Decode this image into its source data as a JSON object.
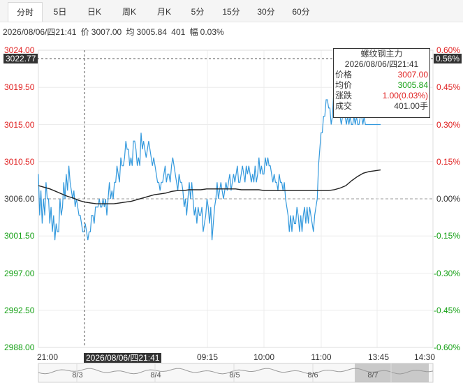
{
  "tabs": [
    {
      "label": "分时",
      "active": true
    },
    {
      "label": "5日",
      "active": false
    },
    {
      "label": "日K",
      "active": false
    },
    {
      "label": "周K",
      "active": false
    },
    {
      "label": "月K",
      "active": false
    },
    {
      "label": "5分",
      "active": false
    },
    {
      "label": "15分",
      "active": false
    },
    {
      "label": "30分",
      "active": false
    },
    {
      "label": "60分",
      "active": false
    }
  ],
  "info": {
    "time": "2026/08/06/四21:41",
    "price_label": "价",
    "price": "3007.00",
    "avg_label": "均",
    "avg": "3005.84",
    "volume": "401",
    "change_label": "幅",
    "change": "0.03%"
  },
  "tooltip": {
    "title": "螺纹钢主力",
    "time": "2026/08/06/四21:41",
    "rows": [
      {
        "label": "价格",
        "value": "3007.00",
        "color": "#e02020"
      },
      {
        "label": "均价",
        "value": "3005.84",
        "color": "#14a014"
      },
      {
        "label": "涨跌",
        "value": "1.00(0.03%)",
        "color": "#e02020"
      },
      {
        "label": "成交",
        "value": "401.00手",
        "color": "#333333"
      }
    ]
  },
  "crosshair": {
    "price_badge": "3022.77",
    "pct_badge": "0.56%",
    "time_badge": "2026/08/06/四21:41"
  },
  "nav_labels": [
    "8/3",
    "8/4",
    "8/5",
    "8/6",
    "8/7"
  ],
  "colors": {
    "up": "#e02020",
    "down": "#14a014",
    "price_line": "#3399dd",
    "avg_line": "#222222"
  },
  "chart_data": {
    "type": "line",
    "base_price": 3006.0,
    "ylim": [
      2988.0,
      3024.0
    ],
    "y_ticks_left": [
      "3024.00",
      "3019.50",
      "3015.00",
      "3010.50",
      "3006.00",
      "3001.50",
      "2997.00",
      "2992.50",
      "2988.00"
    ],
    "y_ticks_right": [
      "0.60%",
      "0.45%",
      "0.30%",
      "0.15%",
      "0.00%",
      "-0.15%",
      "-0.30%",
      "-0.45%",
      "-0.60%"
    ],
    "x_ticks": [
      "21:00",
      "09:15",
      "10:00",
      "11:00",
      "13:45",
      "14:30"
    ],
    "series": [
      {
        "values": [
          3009,
          3004,
          3007,
          3003,
          3006,
          3004,
          3008,
          3006,
          3006,
          3003,
          3005,
          3002,
          3004,
          3001,
          3003,
          3002,
          3002,
          3006,
          3004,
          3005,
          3008,
          3006,
          3009,
          3007,
          3010,
          3008,
          3007,
          3006,
          3007,
          3005,
          3006,
          3005,
          3004,
          3004,
          3003,
          3002,
          3002,
          3003,
          3002,
          3001,
          3002,
          3002,
          3004,
          3004,
          3003,
          3005,
          3005,
          3005,
          3006,
          3005,
          3005,
          3006,
          3005,
          3006,
          3004,
          3006,
          3008,
          3006,
          3007,
          3006,
          3008,
          3008,
          3010,
          3009,
          3008,
          3011,
          3010,
          3010,
          3011,
          3013,
          3012,
          3012,
          3010,
          3011,
          3010,
          3013,
          3013,
          3012,
          3010,
          3011,
          3010,
          3014,
          3012,
          3013,
          3012,
          3011,
          3012,
          3013,
          3012,
          3011,
          3010,
          3011,
          3010,
          3009,
          3008,
          3008,
          3007,
          3008,
          3008,
          3009,
          3010,
          3008,
          3009,
          3009,
          3008,
          3010,
          3011,
          3010,
          3009,
          3008,
          3007,
          3009,
          3008,
          3008,
          3007,
          3005,
          3006,
          3004,
          3006,
          3008,
          3006,
          3008,
          3006,
          3004,
          3005,
          3003,
          3005,
          3004,
          3004,
          3005,
          3002,
          3003,
          3004,
          3006,
          3005,
          3003,
          3005,
          3001,
          3003,
          3005,
          3006,
          3008,
          3006,
          3007,
          3008,
          3007,
          3006,
          3007,
          3008,
          3007,
          3008,
          3009,
          3007,
          3008,
          3009,
          3008,
          3009,
          3010,
          3008,
          3008,
          3009,
          3010,
          3009,
          3008,
          3010,
          3009,
          3010,
          3009,
          3008,
          3009,
          3008,
          3010,
          3008,
          3009,
          3011,
          3009,
          3010,
          3009,
          3009,
          3011,
          3010,
          3011,
          3010,
          3010,
          3009,
          3008,
          3009,
          3008,
          3008,
          3007,
          3009,
          3008,
          3008,
          3007,
          3008,
          3006,
          3005,
          3004,
          3002,
          3004,
          3002,
          3004,
          3003,
          3003,
          3005,
          3004,
          3002,
          3004,
          3002,
          3004,
          3005,
          3003,
          3005,
          3003,
          3005,
          3004,
          3003,
          3002,
          3004,
          3005,
          3006,
          3010,
          3012,
          3014,
          3014,
          3016,
          3016,
          3018,
          3018,
          3017,
          3017,
          3015,
          3016,
          3019,
          3018,
          3017,
          3018,
          3016,
          3016,
          3015,
          3016,
          3017,
          3016,
          3015,
          3016,
          3015,
          3016,
          3015,
          3015,
          3016,
          3015,
          3016,
          3015,
          3015,
          3016,
          3016,
          3015,
          3016,
          3015,
          3015,
          3015,
          3015,
          3015,
          3015,
          3015,
          3015,
          3015,
          3015,
          3015,
          3015,
          3015
        ],
        "name": ""
      },
      {
        "name": "",
        "values": [
          3007.6,
          3007.4,
          3007.2,
          3006.9,
          3006.6,
          3006.3,
          3006.1,
          3005.8,
          3005.6,
          3005.5,
          3005.4,
          3005.4,
          3005.4,
          3005.4,
          3005.5,
          3005.6,
          3005.7,
          3005.9,
          3006.1,
          3006.3,
          3006.5,
          3006.6,
          3006.7,
          3006.9,
          3007.0,
          3007.0,
          3007.1,
          3007.1,
          3007.1,
          3007.2,
          3007.2,
          3007.2,
          3007.2,
          3007.2,
          3007.2,
          3007.1,
          3007.1,
          3007.1,
          3007.1,
          3007.0,
          3007.0,
          3007.0,
          3007.0,
          3007.0,
          3007.0,
          3007.0,
          3007.0,
          3007.0,
          3007.0,
          3007.0,
          3007.0,
          3007.1,
          3007.3,
          3007.6,
          3008.2,
          3008.7,
          3009.1,
          3009.3,
          3009.4,
          3009.5
        ]
      }
    ]
  }
}
